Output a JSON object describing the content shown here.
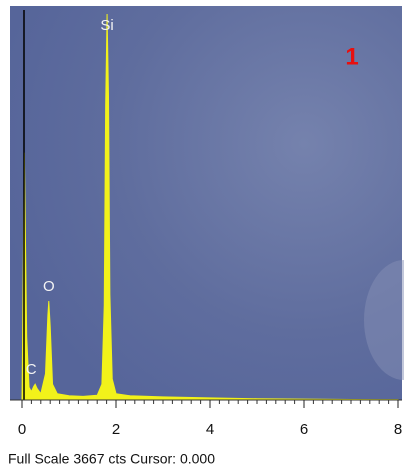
{
  "chart_data": {
    "type": "spectrum",
    "panel_label": "1",
    "footer": "Full Scale 3667 cts Cursor: 0.000",
    "color": "#f2f21a",
    "x": [
      0,
      0.05,
      0.1,
      0.15,
      0.2,
      0.25,
      0.28,
      0.32,
      0.4,
      0.5,
      0.55,
      0.57,
      0.6,
      0.65,
      0.75,
      1.0,
      1.3,
      1.6,
      1.7,
      1.75,
      1.78,
      1.81,
      1.84,
      1.87,
      1.92,
      2.0,
      2.3,
      3,
      4,
      5,
      6,
      7,
      8
    ],
    "values": [
      0,
      2350,
      600,
      120,
      80,
      130,
      150,
      110,
      60,
      250,
      800,
      940,
      700,
      150,
      60,
      40,
      35,
      45,
      150,
      900,
      2800,
      3667,
      2900,
      1000,
      200,
      60,
      40,
      30,
      20,
      12,
      8,
      5,
      3
    ],
    "annotations": [
      {
        "text": "C",
        "x": 0.28
      },
      {
        "text": "O",
        "x": 0.57
      },
      {
        "text": "Si",
        "x": 1.81
      }
    ],
    "xlim": [
      0,
      8
    ],
    "xticks": [
      0,
      2,
      4,
      6,
      8
    ],
    "ylim": [
      0,
      3667
    ]
  }
}
